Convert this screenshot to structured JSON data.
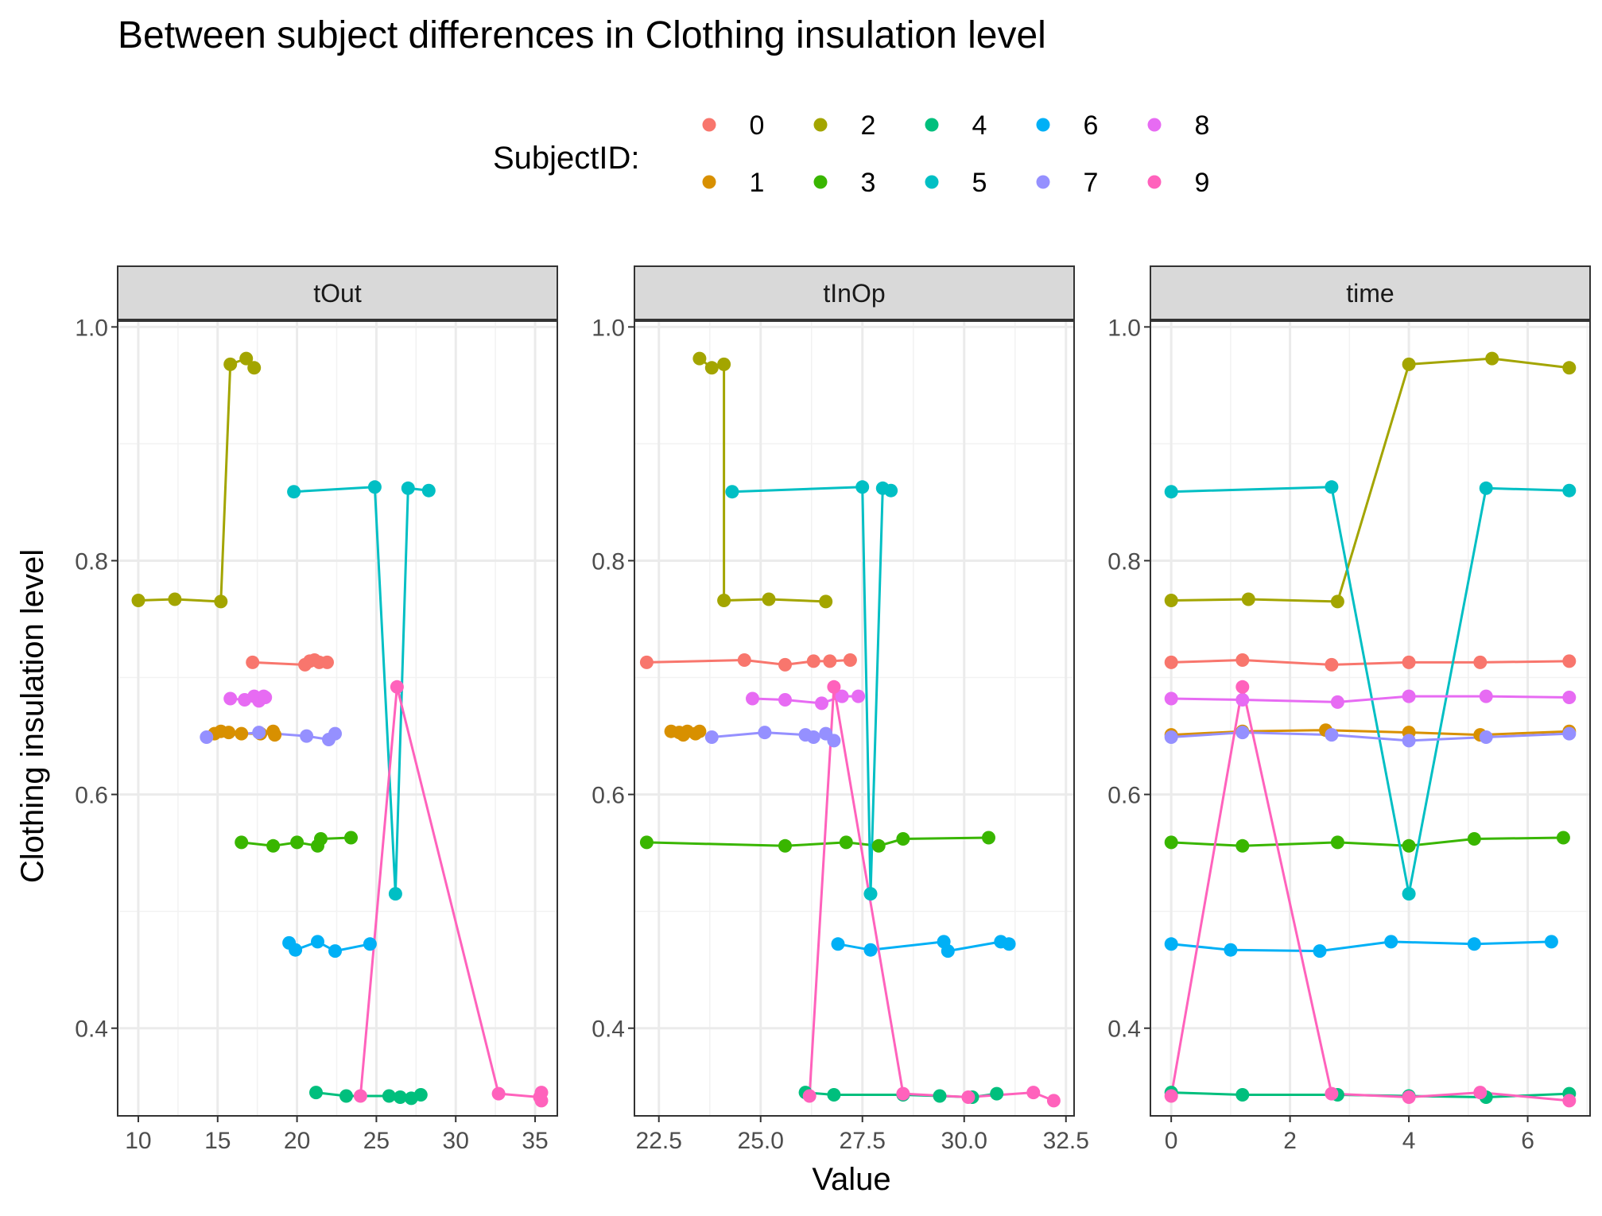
{
  "chart_data": {
    "type": "line",
    "title": "Between subject differences in Clothing insulation level",
    "xlabel": "Value",
    "ylabel": "Clothing insulation level",
    "legend": {
      "title": "SubjectID:",
      "placement": "top",
      "entries": [
        {
          "label": "0",
          "color": "#F8766D"
        },
        {
          "label": "1",
          "color": "#D89000"
        },
        {
          "label": "2",
          "color": "#A3A500"
        },
        {
          "label": "3",
          "color": "#39B600"
        },
        {
          "label": "4",
          "color": "#00BF7D"
        },
        {
          "label": "5",
          "color": "#00BFC4"
        },
        {
          "label": "6",
          "color": "#00B0F6"
        },
        {
          "label": "7",
          "color": "#9590FF"
        },
        {
          "label": "8",
          "color": "#E76BF3"
        },
        {
          "label": "9",
          "color": "#FF62BC"
        }
      ]
    },
    "ylim": [
      0.325,
      1.005
    ],
    "y_ticks": [
      0.4,
      0.6,
      0.8,
      1.0
    ],
    "y_tick_labels": [
      "0.4",
      "0.6",
      "0.8",
      "1.0"
    ],
    "grid": true,
    "panels": [
      {
        "label": "tOut",
        "xlim": [
          8.7,
          36.4
        ],
        "x_ticks": [
          10,
          15,
          20,
          25,
          30,
          35
        ],
        "x_tick_labels": [
          "10",
          "15",
          "20",
          "25",
          "30",
          "35"
        ],
        "series": [
          {
            "name": "0",
            "points": [
              [
                17.2,
                0.713
              ],
              [
                20.5,
                0.711
              ],
              [
                20.8,
                0.714
              ],
              [
                21.1,
                0.715
              ],
              [
                21.4,
                0.713
              ],
              [
                21.9,
                0.713
              ]
            ]
          },
          {
            "name": "1",
            "points": [
              [
                14.8,
                0.652
              ],
              [
                15.2,
                0.654
              ],
              [
                15.7,
                0.653
              ],
              [
                16.5,
                0.652
              ],
              [
                17.7,
                0.652
              ],
              [
                18.5,
                0.654
              ],
              [
                18.6,
                0.651
              ]
            ]
          },
          {
            "name": "2",
            "points": [
              [
                10.0,
                0.766
              ],
              [
                12.3,
                0.767
              ],
              [
                15.2,
                0.765
              ],
              [
                15.8,
                0.968
              ],
              [
                16.8,
                0.973
              ],
              [
                17.3,
                0.965
              ]
            ]
          },
          {
            "name": "3",
            "points": [
              [
                16.5,
                0.559
              ],
              [
                18.5,
                0.556
              ],
              [
                20.0,
                0.559
              ],
              [
                21.3,
                0.556
              ],
              [
                21.5,
                0.562
              ],
              [
                23.4,
                0.563
              ]
            ]
          },
          {
            "name": "4",
            "points": [
              [
                21.2,
                0.345
              ],
              [
                23.1,
                0.342
              ],
              [
                25.8,
                0.342
              ],
              [
                26.5,
                0.341
              ],
              [
                27.2,
                0.34
              ],
              [
                27.8,
                0.343
              ]
            ]
          },
          {
            "name": "5",
            "points": [
              [
                19.8,
                0.859
              ],
              [
                24.9,
                0.863
              ],
              [
                26.2,
                0.515
              ],
              [
                27.0,
                0.862
              ],
              [
                28.3,
                0.86
              ]
            ]
          },
          {
            "name": "6",
            "points": [
              [
                19.5,
                0.473
              ],
              [
                19.9,
                0.467
              ],
              [
                21.3,
                0.474
              ],
              [
                22.4,
                0.466
              ],
              [
                24.6,
                0.472
              ]
            ]
          },
          {
            "name": "7",
            "points": [
              [
                14.3,
                0.649
              ],
              [
                17.6,
                0.653
              ],
              [
                20.6,
                0.65
              ],
              [
                22.0,
                0.647
              ],
              [
                22.4,
                0.652
              ]
            ]
          },
          {
            "name": "8",
            "points": [
              [
                15.8,
                0.682
              ],
              [
                16.7,
                0.681
              ],
              [
                17.3,
                0.684
              ],
              [
                17.6,
                0.68
              ],
              [
                17.9,
                0.684
              ],
              [
                18.0,
                0.683
              ]
            ]
          },
          {
            "name": "9",
            "points": [
              [
                24.0,
                0.342
              ],
              [
                26.3,
                0.692
              ],
              [
                32.7,
                0.344
              ],
              [
                35.3,
                0.341
              ],
              [
                35.4,
                0.345
              ],
              [
                35.4,
                0.338
              ]
            ]
          }
        ]
      },
      {
        "label": "tInOp",
        "xlim": [
          21.9,
          32.7
        ],
        "x_ticks": [
          22.5,
          25.0,
          27.5,
          30.0,
          32.5
        ],
        "x_tick_labels": [
          "22.5",
          "25.0",
          "27.5",
          "30.0",
          "32.5"
        ],
        "series": [
          {
            "name": "0",
            "points": [
              [
                22.2,
                0.713
              ],
              [
                24.6,
                0.715
              ],
              [
                25.6,
                0.711
              ],
              [
                26.3,
                0.714
              ],
              [
                26.7,
                0.714
              ],
              [
                27.2,
                0.715
              ]
            ]
          },
          {
            "name": "1",
            "points": [
              [
                22.8,
                0.654
              ],
              [
                23.0,
                0.653
              ],
              [
                23.1,
                0.651
              ],
              [
                23.2,
                0.654
              ],
              [
                23.4,
                0.652
              ],
              [
                23.5,
                0.654
              ]
            ]
          },
          {
            "name": "2",
            "points": [
              [
                23.5,
                0.973
              ],
              [
                23.8,
                0.965
              ],
              [
                24.1,
                0.968
              ],
              [
                24.1,
                0.766
              ],
              [
                25.2,
                0.767
              ],
              [
                26.6,
                0.765
              ]
            ]
          },
          {
            "name": "3",
            "points": [
              [
                22.2,
                0.559
              ],
              [
                25.6,
                0.556
              ],
              [
                27.1,
                0.559
              ],
              [
                27.9,
                0.556
              ],
              [
                28.5,
                0.562
              ],
              [
                30.6,
                0.563
              ]
            ]
          },
          {
            "name": "4",
            "points": [
              [
                26.1,
                0.345
              ],
              [
                26.8,
                0.343
              ],
              [
                28.5,
                0.343
              ],
              [
                29.4,
                0.342
              ],
              [
                30.2,
                0.341
              ],
              [
                30.8,
                0.344
              ]
            ]
          },
          {
            "name": "5",
            "points": [
              [
                24.3,
                0.859
              ],
              [
                27.5,
                0.863
              ],
              [
                27.7,
                0.515
              ],
              [
                28.0,
                0.862
              ],
              [
                28.2,
                0.86
              ]
            ]
          },
          {
            "name": "6",
            "points": [
              [
                26.9,
                0.472
              ],
              [
                27.7,
                0.467
              ],
              [
                29.5,
                0.474
              ],
              [
                29.6,
                0.466
              ],
              [
                30.9,
                0.474
              ],
              [
                31.1,
                0.472
              ]
            ]
          },
          {
            "name": "7",
            "points": [
              [
                23.8,
                0.649
              ],
              [
                25.1,
                0.653
              ],
              [
                26.1,
                0.651
              ],
              [
                26.3,
                0.649
              ],
              [
                26.6,
                0.652
              ],
              [
                26.8,
                0.646
              ]
            ]
          },
          {
            "name": "8",
            "points": [
              [
                24.8,
                0.682
              ],
              [
                25.6,
                0.681
              ],
              [
                26.5,
                0.678
              ],
              [
                27.0,
                0.684
              ],
              [
                27.4,
                0.684
              ]
            ]
          },
          {
            "name": "9",
            "points": [
              [
                26.2,
                0.342
              ],
              [
                26.8,
                0.692
              ],
              [
                28.5,
                0.344
              ],
              [
                30.1,
                0.341
              ],
              [
                31.7,
                0.345
              ],
              [
                32.2,
                0.338
              ]
            ]
          }
        ]
      },
      {
        "label": "time",
        "xlim": [
          -0.35,
          7.05
        ],
        "x_ticks": [
          0,
          2,
          4,
          6
        ],
        "x_tick_labels": [
          "0",
          "2",
          "4",
          "6"
        ],
        "series": [
          {
            "name": "0",
            "points": [
              [
                0.0,
                0.713
              ],
              [
                1.2,
                0.715
              ],
              [
                2.7,
                0.711
              ],
              [
                4.0,
                0.713
              ],
              [
                5.2,
                0.713
              ],
              [
                6.7,
                0.714
              ]
            ]
          },
          {
            "name": "1",
            "points": [
              [
                0.0,
                0.651
              ],
              [
                1.2,
                0.654
              ],
              [
                2.6,
                0.655
              ],
              [
                4.0,
                0.653
              ],
              [
                5.2,
                0.651
              ],
              [
                6.7,
                0.654
              ]
            ]
          },
          {
            "name": "2",
            "points": [
              [
                0.0,
                0.766
              ],
              [
                1.3,
                0.767
              ],
              [
                2.8,
                0.765
              ],
              [
                4.0,
                0.968
              ],
              [
                5.4,
                0.973
              ],
              [
                6.7,
                0.965
              ]
            ]
          },
          {
            "name": "3",
            "points": [
              [
                0.0,
                0.559
              ],
              [
                1.2,
                0.556
              ],
              [
                2.8,
                0.559
              ],
              [
                4.0,
                0.556
              ],
              [
                5.1,
                0.562
              ],
              [
                6.6,
                0.563
              ]
            ]
          },
          {
            "name": "4",
            "points": [
              [
                0.0,
                0.345
              ],
              [
                1.2,
                0.343
              ],
              [
                2.8,
                0.343
              ],
              [
                4.0,
                0.342
              ],
              [
                5.3,
                0.341
              ],
              [
                6.7,
                0.344
              ]
            ]
          },
          {
            "name": "5",
            "points": [
              [
                0.0,
                0.859
              ],
              [
                2.7,
                0.863
              ],
              [
                4.0,
                0.515
              ],
              [
                5.3,
                0.862
              ],
              [
                6.7,
                0.86
              ]
            ]
          },
          {
            "name": "6",
            "points": [
              [
                0.0,
                0.472
              ],
              [
                1.0,
                0.467
              ],
              [
                2.5,
                0.466
              ],
              [
                3.7,
                0.474
              ],
              [
                5.1,
                0.472
              ],
              [
                6.4,
                0.474
              ]
            ]
          },
          {
            "name": "7",
            "points": [
              [
                0.0,
                0.649
              ],
              [
                1.2,
                0.653
              ],
              [
                2.7,
                0.651
              ],
              [
                4.0,
                0.646
              ],
              [
                5.3,
                0.649
              ],
              [
                6.7,
                0.652
              ]
            ]
          },
          {
            "name": "8",
            "points": [
              [
                0.0,
                0.682
              ],
              [
                1.2,
                0.681
              ],
              [
                2.8,
                0.679
              ],
              [
                4.0,
                0.684
              ],
              [
                5.3,
                0.684
              ],
              [
                6.7,
                0.683
              ]
            ]
          },
          {
            "name": "9",
            "points": [
              [
                0.0,
                0.342
              ],
              [
                1.2,
                0.692
              ],
              [
                2.7,
                0.344
              ],
              [
                4.0,
                0.341
              ],
              [
                5.2,
                0.345
              ],
              [
                6.7,
                0.338
              ]
            ]
          }
        ]
      }
    ]
  }
}
